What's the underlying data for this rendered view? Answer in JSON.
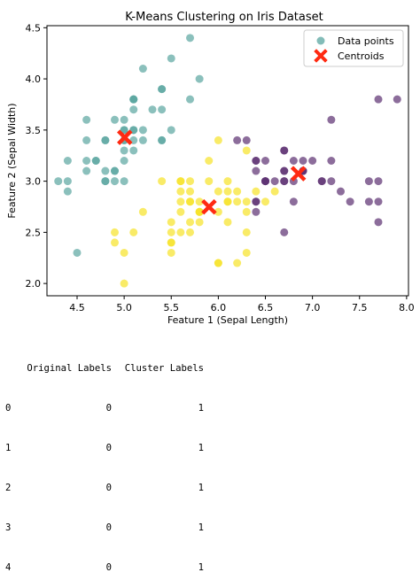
{
  "chart_data": {
    "type": "scatter",
    "title": "K-Means Clustering on Iris Dataset",
    "xlabel": "Feature 1 (Sepal Length)",
    "ylabel": "Feature 2 (Sepal Width)",
    "xlim": [
      4.18,
      8.02
    ],
    "ylim": [
      1.88,
      4.52
    ],
    "xticks": [
      "4.5",
      "5.0",
      "5.5",
      "6.0",
      "6.5",
      "7.0",
      "7.5",
      "8.0"
    ],
    "yticks": [
      "2.0",
      "2.5",
      "3.0",
      "3.5",
      "4.0",
      "4.5"
    ],
    "grid": false,
    "legend_placement": "top-right",
    "legend": [
      "Data points",
      "Centroids"
    ],
    "cluster_colors": {
      "teal": "#5aa5a0",
      "yellow": "#f7e227",
      "purple": "#5b2f71"
    },
    "centroid_color": "#ff2a12",
    "series": [
      {
        "cluster": "teal",
        "x": [
          5.1,
          4.9,
          4.7,
          4.6,
          5.0,
          5.4,
          4.6,
          5.0,
          4.4,
          4.9,
          5.4,
          4.8,
          4.8,
          4.3,
          5.8,
          5.7,
          5.4,
          5.1,
          5.7,
          5.1,
          5.4,
          5.1,
          4.6,
          5.1,
          4.8,
          5.0,
          5.0,
          5.2,
          5.2,
          4.7,
          4.8,
          5.4,
          5.2,
          5.5,
          4.9,
          5.0,
          5.5,
          4.9,
          4.4,
          5.1,
          5.0,
          4.5,
          4.4,
          5.0,
          5.1,
          4.8,
          5.1,
          4.6,
          5.3,
          5.0
        ],
        "y": [
          3.5,
          3.0,
          3.2,
          3.1,
          3.6,
          3.9,
          3.4,
          3.4,
          2.9,
          3.1,
          3.7,
          3.4,
          3.0,
          3.0,
          4.0,
          4.4,
          3.9,
          3.5,
          3.8,
          3.8,
          3.4,
          3.7,
          3.6,
          3.3,
          3.4,
          3.0,
          3.4,
          3.5,
          3.4,
          3.2,
          3.1,
          3.4,
          4.1,
          4.2,
          3.1,
          3.2,
          3.5,
          3.6,
          3.0,
          3.4,
          3.5,
          2.3,
          3.2,
          3.5,
          3.8,
          3.0,
          3.8,
          3.2,
          3.7,
          3.3
        ]
      },
      {
        "cluster": "yellow",
        "x": [
          5.5,
          6.5,
          5.7,
          6.3,
          4.9,
          6.6,
          5.2,
          5.0,
          5.9,
          6.0,
          6.1,
          5.6,
          5.6,
          5.8,
          6.2,
          5.6,
          5.9,
          6.1,
          6.3,
          6.1,
          6.4,
          6.0,
          5.7,
          5.5,
          5.5,
          5.8,
          6.0,
          5.4,
          6.0,
          6.3,
          5.6,
          5.5,
          5.5,
          6.1,
          5.8,
          5.0,
          5.6,
          5.7,
          5.7,
          6.2,
          5.1,
          5.7,
          5.8,
          4.9,
          5.7,
          5.8,
          6.0,
          5.6,
          6.3,
          6.2,
          6.1,
          6.3
        ],
        "y": [
          2.3,
          2.8,
          2.8,
          3.3,
          2.4,
          2.9,
          2.7,
          2.0,
          3.0,
          2.2,
          2.9,
          2.9,
          3.0,
          2.7,
          2.2,
          2.5,
          3.2,
          2.8,
          2.5,
          2.8,
          2.9,
          2.9,
          2.6,
          2.4,
          2.4,
          2.7,
          2.7,
          3.0,
          3.4,
          2.3,
          3.0,
          2.5,
          2.6,
          3.0,
          2.6,
          2.3,
          2.7,
          3.0,
          2.9,
          2.9,
          2.5,
          2.8,
          2.7,
          2.5,
          2.5,
          2.8,
          2.2,
          2.8,
          2.7,
          2.8,
          2.6,
          2.8
        ]
      },
      {
        "cluster": "purple",
        "x": [
          7.0,
          6.4,
          6.9,
          6.7,
          7.1,
          6.5,
          7.6,
          7.3,
          6.7,
          7.2,
          6.5,
          6.4,
          6.8,
          6.4,
          6.5,
          7.7,
          7.7,
          6.9,
          7.7,
          6.7,
          7.2,
          6.4,
          7.2,
          7.4,
          7.9,
          6.4,
          7.7,
          6.3,
          6.4,
          6.9,
          6.7,
          6.9,
          6.8,
          6.7,
          6.7,
          6.5,
          6.2,
          6.6,
          6.7,
          6.8,
          7.1,
          7.6
        ],
        "y": [
          3.2,
          3.2,
          3.1,
          3.1,
          3.0,
          3.0,
          3.0,
          2.9,
          2.5,
          3.6,
          3.2,
          2.7,
          3.0,
          3.2,
          3.0,
          3.8,
          2.6,
          3.2,
          2.8,
          3.3,
          3.2,
          2.8,
          3.0,
          2.8,
          3.8,
          2.8,
          3.0,
          3.4,
          3.1,
          3.1,
          3.1,
          3.1,
          3.2,
          3.3,
          3.0,
          3.0,
          3.4,
          3.0,
          3.0,
          2.8,
          3.0,
          2.8
        ]
      }
    ],
    "centroids": {
      "x": [
        5.006,
        5.9016,
        6.85
      ],
      "y": [
        3.428,
        2.7484,
        3.0737
      ]
    }
  },
  "output": {
    "header": [
      "Original Labels",
      "Cluster Labels"
    ],
    "rows": [
      {
        "index": "0",
        "original": "0",
        "cluster": "1"
      },
      {
        "index": "1",
        "original": "0",
        "cluster": "1"
      },
      {
        "index": "2",
        "original": "0",
        "cluster": "1"
      },
      {
        "index": "3",
        "original": "0",
        "cluster": "1"
      },
      {
        "index": "4",
        "original": "0",
        "cluster": "1"
      }
    ]
  }
}
